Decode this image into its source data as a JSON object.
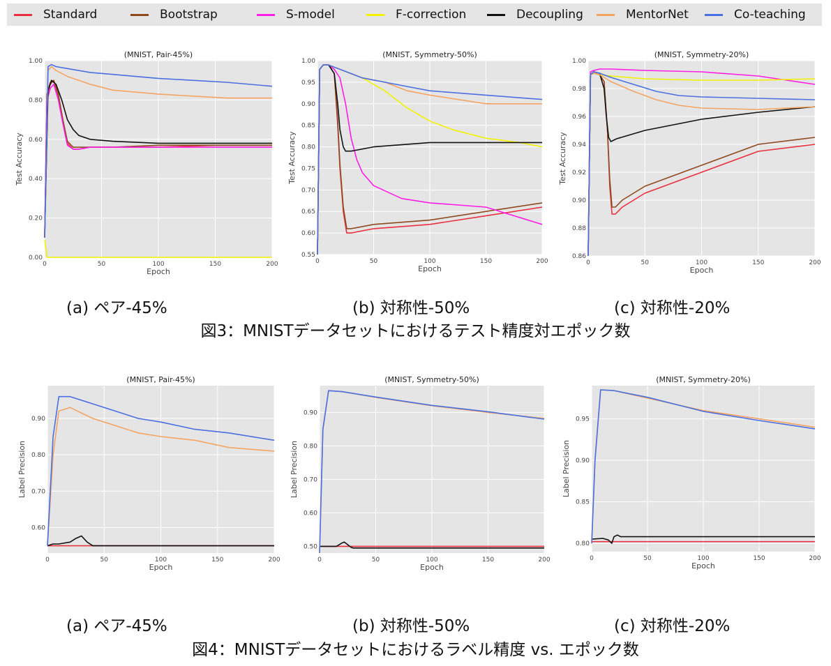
{
  "legend": [
    {
      "name": "Standard",
      "color": "#e8303f"
    },
    {
      "name": "Bootstrap",
      "color": "#8e4a1e"
    },
    {
      "name": "S-model",
      "color": "#ff1ee6"
    },
    {
      "name": "F-correction",
      "color": "#f2f200"
    },
    {
      "name": "Decoupling",
      "color": "#111111"
    },
    {
      "name": "MentorNet",
      "color": "#f4a462"
    },
    {
      "name": "Co-teaching",
      "color": "#4a6fe0"
    }
  ],
  "figure3": {
    "caption": "図3：MNISTデータセットにおけるテスト精度対エポック数",
    "subcaptions": [
      "(a) ペア-45%",
      "(b) 対称性-50%",
      "(c) 対称性-20%"
    ]
  },
  "figure4": {
    "caption": "図4：MNISTデータセットにおけるラベル精度 vs. エポック数",
    "subcaptions": [
      "(a) ペア-45%",
      "(b) 対称性-50%",
      "(c) 対称性-20%"
    ]
  },
  "chart_data": [
    {
      "type": "line",
      "title": "(MNIST, Pair-45%)",
      "xlabel": "Epoch",
      "ylabel": "Test Accuracy",
      "xlim": [
        0,
        200
      ],
      "ylim": [
        0.0,
        1.0
      ],
      "xticks": [
        "0",
        "50",
        "100",
        "150",
        "200"
      ],
      "yticks": [
        "0.00",
        "0.20",
        "0.40",
        "0.60",
        "0.80",
        "1.00"
      ],
      "grid": true,
      "series": [
        {
          "name": "Standard",
          "x": [
            0,
            2,
            5,
            8,
            12,
            16,
            20,
            25,
            30,
            40,
            60,
            100,
            150,
            200
          ],
          "y": [
            0.1,
            0.82,
            0.88,
            0.9,
            0.82,
            0.7,
            0.58,
            0.55,
            0.55,
            0.56,
            0.56,
            0.56,
            0.57,
            0.57
          ]
        },
        {
          "name": "Bootstrap",
          "x": [
            0,
            2,
            5,
            8,
            12,
            16,
            20,
            25,
            30,
            40,
            60,
            100,
            150,
            200
          ],
          "y": [
            0.1,
            0.83,
            0.89,
            0.9,
            0.83,
            0.7,
            0.59,
            0.56,
            0.56,
            0.56,
            0.56,
            0.57,
            0.57,
            0.57
          ]
        },
        {
          "name": "S-model",
          "x": [
            0,
            2,
            5,
            8,
            12,
            16,
            20,
            25,
            30,
            40,
            60,
            100,
            150,
            200
          ],
          "y": [
            0.1,
            0.8,
            0.86,
            0.88,
            0.8,
            0.68,
            0.57,
            0.55,
            0.55,
            0.56,
            0.56,
            0.56,
            0.56,
            0.56
          ]
        },
        {
          "name": "F-correction",
          "x": [
            0,
            1,
            2,
            200
          ],
          "y": [
            0.09,
            0.05,
            0.0,
            0.0
          ]
        },
        {
          "name": "Decoupling",
          "x": [
            0,
            3,
            6,
            10,
            15,
            20,
            25,
            30,
            40,
            60,
            100,
            150,
            200
          ],
          "y": [
            0.1,
            0.85,
            0.9,
            0.88,
            0.8,
            0.7,
            0.65,
            0.62,
            0.6,
            0.59,
            0.58,
            0.58,
            0.58
          ]
        },
        {
          "name": "MentorNet",
          "x": [
            0,
            3,
            6,
            10,
            20,
            40,
            60,
            80,
            100,
            130,
            160,
            200
          ],
          "y": [
            0.1,
            0.95,
            0.97,
            0.95,
            0.92,
            0.88,
            0.85,
            0.84,
            0.83,
            0.82,
            0.81,
            0.81
          ]
        },
        {
          "name": "Co-teaching",
          "x": [
            0,
            3,
            6,
            10,
            20,
            40,
            60,
            80,
            100,
            130,
            160,
            200
          ],
          "y": [
            0.1,
            0.97,
            0.98,
            0.97,
            0.96,
            0.94,
            0.93,
            0.92,
            0.91,
            0.9,
            0.89,
            0.87
          ]
        }
      ]
    },
    {
      "type": "line",
      "title": "(MNIST, Symmetry-50%)",
      "xlabel": "Epoch",
      "ylabel": "Test Accuracy",
      "xlim": [
        0,
        200
      ],
      "ylim": [
        0.55,
        1.0
      ],
      "xticks": [
        "0",
        "50",
        "100",
        "150",
        "200"
      ],
      "yticks": [
        "0.55",
        "0.60",
        "0.65",
        "0.70",
        "0.75",
        "0.80",
        "0.85",
        "0.90",
        "0.95",
        "1.00"
      ],
      "grid": true,
      "series": [
        {
          "name": "Standard",
          "x": [
            0,
            2,
            5,
            10,
            15,
            18,
            20,
            23,
            26,
            30,
            50,
            100,
            150,
            200
          ],
          "y": [
            0.55,
            0.98,
            0.99,
            0.99,
            0.97,
            0.85,
            0.75,
            0.65,
            0.6,
            0.6,
            0.61,
            0.62,
            0.64,
            0.66
          ]
        },
        {
          "name": "Bootstrap",
          "x": [
            0,
            2,
            5,
            10,
            15,
            18,
            20,
            23,
            26,
            30,
            50,
            100,
            150,
            200
          ],
          "y": [
            0.55,
            0.98,
            0.99,
            0.99,
            0.97,
            0.86,
            0.76,
            0.66,
            0.61,
            0.61,
            0.62,
            0.63,
            0.65,
            0.67
          ]
        },
        {
          "name": "S-model",
          "x": [
            0,
            2,
            5,
            10,
            15,
            20,
            25,
            30,
            35,
            40,
            50,
            75,
            100,
            150,
            200
          ],
          "y": [
            0.55,
            0.98,
            0.99,
            0.99,
            0.98,
            0.96,
            0.9,
            0.82,
            0.77,
            0.74,
            0.71,
            0.68,
            0.67,
            0.66,
            0.62
          ]
        },
        {
          "name": "F-correction",
          "x": [
            0,
            2,
            5,
            10,
            20,
            40,
            60,
            80,
            100,
            120,
            150,
            180,
            200
          ],
          "y": [
            0.55,
            0.98,
            0.99,
            0.99,
            0.98,
            0.96,
            0.93,
            0.89,
            0.86,
            0.84,
            0.82,
            0.81,
            0.8
          ]
        },
        {
          "name": "Decoupling",
          "x": [
            0,
            2,
            5,
            10,
            15,
            18,
            20,
            23,
            25,
            30,
            50,
            100,
            150,
            200
          ],
          "y": [
            0.55,
            0.98,
            0.99,
            0.99,
            0.97,
            0.9,
            0.84,
            0.8,
            0.79,
            0.79,
            0.8,
            0.81,
            0.81,
            0.81
          ]
        },
        {
          "name": "MentorNet",
          "x": [
            0,
            2,
            5,
            10,
            20,
            40,
            60,
            80,
            100,
            150,
            200
          ],
          "y": [
            0.55,
            0.98,
            0.99,
            0.99,
            0.98,
            0.96,
            0.95,
            0.93,
            0.92,
            0.9,
            0.9
          ]
        },
        {
          "name": "Co-teaching",
          "x": [
            0,
            2,
            5,
            10,
            20,
            40,
            60,
            80,
            100,
            150,
            200
          ],
          "y": [
            0.55,
            0.98,
            0.99,
            0.99,
            0.98,
            0.96,
            0.95,
            0.94,
            0.93,
            0.92,
            0.91
          ]
        }
      ]
    },
    {
      "type": "line",
      "title": "(MNIST, Symmetry-20%)",
      "xlabel": "Epoch",
      "ylabel": "Test Accuracy",
      "xlim": [
        0,
        200
      ],
      "ylim": [
        0.86,
        1.0
      ],
      "xticks": [
        "0",
        "50",
        "100",
        "150",
        "200"
      ],
      "yticks": [
        "0.86",
        "0.88",
        "0.90",
        "0.92",
        "0.94",
        "0.96",
        "0.98",
        "1.00"
      ],
      "grid": true,
      "series": [
        {
          "name": "Standard",
          "x": [
            0,
            2,
            5,
            10,
            14,
            17,
            19,
            21,
            24,
            30,
            50,
            100,
            150,
            200
          ],
          "y": [
            0.86,
            0.99,
            0.991,
            0.99,
            0.985,
            0.95,
            0.91,
            0.89,
            0.89,
            0.895,
            0.905,
            0.92,
            0.935,
            0.94
          ]
        },
        {
          "name": "Bootstrap",
          "x": [
            0,
            2,
            5,
            10,
            14,
            17,
            19,
            21,
            24,
            30,
            50,
            100,
            150,
            200
          ],
          "y": [
            0.86,
            0.99,
            0.991,
            0.99,
            0.985,
            0.95,
            0.915,
            0.895,
            0.895,
            0.9,
            0.91,
            0.925,
            0.94,
            0.945
          ]
        },
        {
          "name": "S-model",
          "x": [
            0,
            2,
            5,
            10,
            20,
            50,
            100,
            150,
            200
          ],
          "y": [
            0.86,
            0.992,
            0.993,
            0.994,
            0.994,
            0.993,
            0.992,
            0.989,
            0.983
          ]
        },
        {
          "name": "F-correction",
          "x": [
            0,
            2,
            5,
            10,
            20,
            50,
            100,
            150,
            200
          ],
          "y": [
            0.86,
            0.99,
            0.991,
            0.99,
            0.989,
            0.987,
            0.986,
            0.986,
            0.987
          ]
        },
        {
          "name": "Decoupling",
          "x": [
            0,
            2,
            5,
            10,
            14,
            16,
            18,
            20,
            25,
            50,
            100,
            150,
            200
          ],
          "y": [
            0.86,
            0.99,
            0.992,
            0.991,
            0.98,
            0.96,
            0.945,
            0.942,
            0.944,
            0.95,
            0.958,
            0.963,
            0.967
          ]
        },
        {
          "name": "MentorNet",
          "x": [
            0,
            2,
            5,
            10,
            20,
            40,
            60,
            80,
            100,
            150,
            200
          ],
          "y": [
            0.86,
            0.99,
            0.991,
            0.99,
            0.985,
            0.978,
            0.972,
            0.968,
            0.966,
            0.965,
            0.967
          ]
        },
        {
          "name": "Co-teaching",
          "x": [
            0,
            2,
            5,
            10,
            20,
            40,
            60,
            80,
            100,
            150,
            200
          ],
          "y": [
            0.86,
            0.99,
            0.992,
            0.991,
            0.988,
            0.983,
            0.978,
            0.975,
            0.974,
            0.973,
            0.972
          ]
        }
      ]
    },
    {
      "type": "line",
      "title": "(MNIST, Pair-45%)",
      "xlabel": "Epoch",
      "ylabel": "Label Precision",
      "xlim": [
        0,
        200
      ],
      "ylim": [
        0.53,
        0.99
      ],
      "xticks": [
        "0",
        "50",
        "100",
        "150",
        "200"
      ],
      "yticks": [
        "0.60",
        "0.70",
        "0.80",
        "0.90"
      ],
      "grid": true,
      "series": [
        {
          "name": "Standard",
          "x": [
            0,
            200
          ],
          "y": [
            0.55,
            0.55
          ]
        },
        {
          "name": "Decoupling",
          "x": [
            0,
            5,
            10,
            20,
            25,
            30,
            35,
            40,
            50,
            100,
            150,
            200
          ],
          "y": [
            0.55,
            0.555,
            0.555,
            0.56,
            0.57,
            0.577,
            0.56,
            0.55,
            0.55,
            0.55,
            0.55,
            0.55
          ]
        },
        {
          "name": "MentorNet",
          "x": [
            0,
            5,
            10,
            20,
            40,
            60,
            80,
            100,
            130,
            160,
            200
          ],
          "y": [
            0.55,
            0.8,
            0.92,
            0.93,
            0.9,
            0.88,
            0.86,
            0.85,
            0.84,
            0.82,
            0.81
          ]
        },
        {
          "name": "Co-teaching",
          "x": [
            0,
            5,
            10,
            20,
            40,
            60,
            80,
            100,
            130,
            160,
            200
          ],
          "y": [
            0.55,
            0.85,
            0.96,
            0.96,
            0.94,
            0.92,
            0.9,
            0.89,
            0.87,
            0.86,
            0.84
          ]
        }
      ]
    },
    {
      "type": "line",
      "title": "(MNIST, Symmetry-50%)",
      "xlabel": "Epoch",
      "ylabel": "Label Precision",
      "xlim": [
        0,
        200
      ],
      "ylim": [
        0.48,
        0.98
      ],
      "xticks": [
        "0",
        "50",
        "100",
        "150",
        "200"
      ],
      "yticks": [
        "0.50",
        "0.60",
        "0.70",
        "0.80",
        "0.90"
      ],
      "grid": true,
      "series": [
        {
          "name": "Standard",
          "x": [
            0,
            200
          ],
          "y": [
            0.5,
            0.5
          ]
        },
        {
          "name": "Decoupling",
          "x": [
            0,
            10,
            15,
            20,
            22,
            25,
            28,
            30,
            40,
            100,
            150,
            200
          ],
          "y": [
            0.5,
            0.5,
            0.5,
            0.51,
            0.513,
            0.505,
            0.497,
            0.495,
            0.495,
            0.495,
            0.495,
            0.495
          ]
        },
        {
          "name": "MentorNet",
          "x": [
            0,
            3,
            8,
            20,
            50,
            100,
            150,
            200
          ],
          "y": [
            0.48,
            0.85,
            0.965,
            0.962,
            0.945,
            0.92,
            0.9,
            0.882
          ]
        },
        {
          "name": "Co-teaching",
          "x": [
            0,
            3,
            8,
            20,
            50,
            100,
            150,
            200
          ],
          "y": [
            0.48,
            0.85,
            0.965,
            0.962,
            0.946,
            0.921,
            0.902,
            0.88
          ]
        }
      ]
    },
    {
      "type": "line",
      "title": "(MNIST, Symmetry-20%)",
      "xlabel": "Epoch",
      "ylabel": "Label Precision",
      "xlim": [
        0,
        200
      ],
      "ylim": [
        0.79,
        0.99
      ],
      "xticks": [
        "0",
        "50",
        "100",
        "150",
        "200"
      ],
      "yticks": [
        "0.80",
        "0.85",
        "0.90",
        "0.95"
      ],
      "grid": true,
      "series": [
        {
          "name": "Standard",
          "x": [
            0,
            200
          ],
          "y": [
            0.802,
            0.802
          ]
        },
        {
          "name": "Decoupling",
          "x": [
            0,
            10,
            15,
            18,
            20,
            23,
            26,
            30,
            50,
            100,
            150,
            200
          ],
          "y": [
            0.805,
            0.806,
            0.804,
            0.8,
            0.808,
            0.81,
            0.808,
            0.808,
            0.808,
            0.808,
            0.808,
            0.808
          ]
        },
        {
          "name": "MentorNet",
          "x": [
            0,
            3,
            8,
            20,
            50,
            100,
            150,
            200
          ],
          "y": [
            0.8,
            0.9,
            0.985,
            0.984,
            0.975,
            0.96,
            0.95,
            0.94
          ]
        },
        {
          "name": "Co-teaching",
          "x": [
            0,
            3,
            8,
            20,
            50,
            100,
            150,
            200
          ],
          "y": [
            0.8,
            0.9,
            0.985,
            0.984,
            0.976,
            0.959,
            0.948,
            0.938
          ]
        }
      ]
    }
  ]
}
